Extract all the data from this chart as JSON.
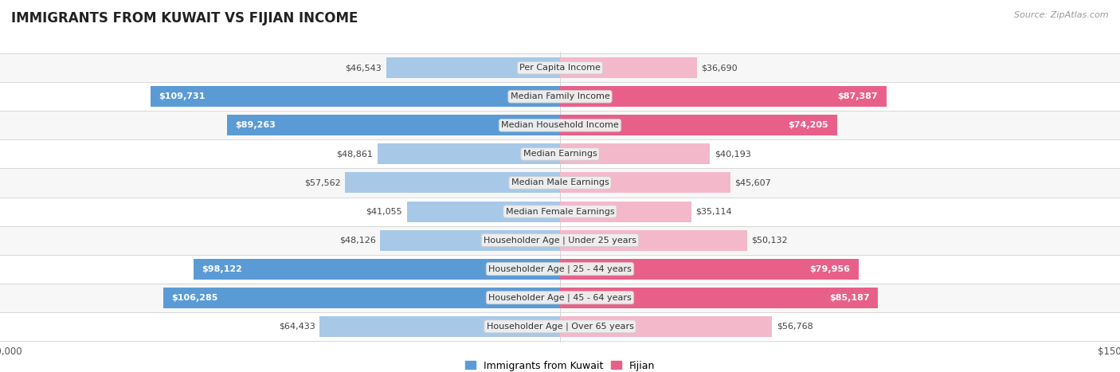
{
  "title": "IMMIGRANTS FROM KUWAIT VS FIJIAN INCOME",
  "source": "Source: ZipAtlas.com",
  "categories": [
    "Per Capita Income",
    "Median Family Income",
    "Median Household Income",
    "Median Earnings",
    "Median Male Earnings",
    "Median Female Earnings",
    "Householder Age | Under 25 years",
    "Householder Age | 25 - 44 years",
    "Householder Age | 45 - 64 years",
    "Householder Age | Over 65 years"
  ],
  "kuwait_values": [
    46543,
    109731,
    89263,
    48861,
    57562,
    41055,
    48126,
    98122,
    106285,
    64433
  ],
  "fijian_values": [
    36690,
    87387,
    74205,
    40193,
    45607,
    35114,
    50132,
    79956,
    85187,
    56768
  ],
  "kuwait_color_light": "#a8c8e8",
  "kuwait_color_dark": "#5b9bd5",
  "fijian_color_light": "#f4b8cb",
  "fijian_color_dark": "#e8608a",
  "label_bg_color": "#f0f0f0",
  "row_colors": [
    "#f7f7f7",
    "#ffffff"
  ],
  "row_border_color": "#d8d8d8",
  "max_value": 150000,
  "legend_kuwait": "Immigrants from Kuwait",
  "legend_fijian": "Fijian",
  "figsize": [
    14.06,
    4.67
  ],
  "dpi": 100
}
